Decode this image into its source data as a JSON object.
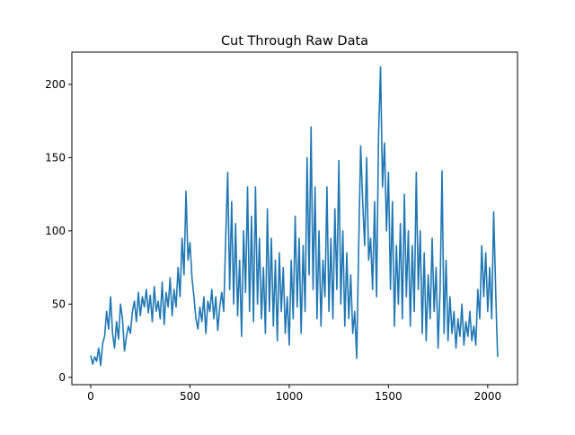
{
  "chart_data": {
    "type": "line",
    "title": "Cut Through Raw Data",
    "xlabel": "",
    "ylabel": "",
    "xlim": [
      -95,
      2150
    ],
    "ylim": [
      -5,
      222
    ],
    "xticks": [
      0,
      500,
      1000,
      1500,
      2000
    ],
    "yticks": [
      0,
      50,
      100,
      150,
      200
    ],
    "grid": false,
    "line_color": "#1f77b4",
    "series": [
      {
        "name": "",
        "points": [
          [
            0,
            15
          ],
          [
            10,
            9
          ],
          [
            20,
            14
          ],
          [
            30,
            11
          ],
          [
            40,
            20
          ],
          [
            50,
            8
          ],
          [
            60,
            23
          ],
          [
            70,
            28
          ],
          [
            80,
            45
          ],
          [
            90,
            33
          ],
          [
            100,
            55
          ],
          [
            110,
            30
          ],
          [
            120,
            20
          ],
          [
            130,
            38
          ],
          [
            140,
            26
          ],
          [
            150,
            50
          ],
          [
            160,
            40
          ],
          [
            170,
            18
          ],
          [
            180,
            28
          ],
          [
            190,
            35
          ],
          [
            200,
            30
          ],
          [
            210,
            45
          ],
          [
            220,
            52
          ],
          [
            230,
            38
          ],
          [
            240,
            58
          ],
          [
            250,
            42
          ],
          [
            260,
            55
          ],
          [
            270,
            48
          ],
          [
            280,
            60
          ],
          [
            290,
            44
          ],
          [
            300,
            56
          ],
          [
            310,
            38
          ],
          [
            320,
            62
          ],
          [
            330,
            45
          ],
          [
            340,
            52
          ],
          [
            350,
            40
          ],
          [
            360,
            65
          ],
          [
            370,
            36
          ],
          [
            380,
            58
          ],
          [
            390,
            48
          ],
          [
            400,
            68
          ],
          [
            410,
            42
          ],
          [
            420,
            60
          ],
          [
            430,
            48
          ],
          [
            440,
            75
          ],
          [
            450,
            55
          ],
          [
            460,
            95
          ],
          [
            470,
            70
          ],
          [
            480,
            127
          ],
          [
            490,
            80
          ],
          [
            500,
            92
          ],
          [
            510,
            68
          ],
          [
            520,
            55
          ],
          [
            530,
            40
          ],
          [
            540,
            33
          ],
          [
            550,
            48
          ],
          [
            560,
            38
          ],
          [
            570,
            55
          ],
          [
            580,
            30
          ],
          [
            590,
            52
          ],
          [
            600,
            45
          ],
          [
            610,
            60
          ],
          [
            620,
            40
          ],
          [
            630,
            55
          ],
          [
            640,
            32
          ],
          [
            650,
            48
          ],
          [
            660,
            58
          ],
          [
            670,
            45
          ],
          [
            680,
            95
          ],
          [
            690,
            140
          ],
          [
            700,
            60
          ],
          [
            710,
            120
          ],
          [
            720,
            50
          ],
          [
            730,
            105
          ],
          [
            740,
            42
          ],
          [
            750,
            80
          ],
          [
            760,
            28
          ],
          [
            770,
            100
          ],
          [
            780,
            58
          ],
          [
            790,
            130
          ],
          [
            800,
            45
          ],
          [
            810,
            110
          ],
          [
            820,
            38
          ],
          [
            830,
            130
          ],
          [
            840,
            50
          ],
          [
            850,
            95
          ],
          [
            860,
            40
          ],
          [
            870,
            75
          ],
          [
            880,
            30
          ],
          [
            890,
            115
          ],
          [
            900,
            45
          ],
          [
            910,
            95
          ],
          [
            920,
            35
          ],
          [
            930,
            80
          ],
          [
            940,
            25
          ],
          [
            950,
            85
          ],
          [
            960,
            45
          ],
          [
            970,
            75
          ],
          [
            980,
            30
          ],
          [
            990,
            55
          ],
          [
            1000,
            22
          ],
          [
            1010,
            80
          ],
          [
            1020,
            40
          ],
          [
            1030,
            110
          ],
          [
            1040,
            48
          ],
          [
            1050,
            95
          ],
          [
            1060,
            30
          ],
          [
            1070,
            90
          ],
          [
            1080,
            45
          ],
          [
            1090,
            150
          ],
          [
            1100,
            70
          ],
          [
            1110,
            171
          ],
          [
            1120,
            60
          ],
          [
            1130,
            130
          ],
          [
            1140,
            40
          ],
          [
            1150,
            100
          ],
          [
            1160,
            35
          ],
          [
            1170,
            80
          ],
          [
            1180,
            55
          ],
          [
            1190,
            130
          ],
          [
            1200,
            45
          ],
          [
            1210,
            95
          ],
          [
            1220,
            40
          ],
          [
            1230,
            115
          ],
          [
            1240,
            60
          ],
          [
            1250,
            148
          ],
          [
            1260,
            50
          ],
          [
            1270,
            100
          ],
          [
            1280,
            35
          ],
          [
            1290,
            85
          ],
          [
            1300,
            40
          ],
          [
            1310,
            70
          ],
          [
            1320,
            30
          ],
          [
            1330,
            45
          ],
          [
            1340,
            13
          ],
          [
            1350,
            90
          ],
          [
            1360,
            158
          ],
          [
            1370,
            120
          ],
          [
            1380,
            90
          ],
          [
            1390,
            150
          ],
          [
            1400,
            80
          ],
          [
            1410,
            95
          ],
          [
            1420,
            60
          ],
          [
            1430,
            120
          ],
          [
            1440,
            55
          ],
          [
            1450,
            165
          ],
          [
            1460,
            212
          ],
          [
            1470,
            130
          ],
          [
            1480,
            160
          ],
          [
            1490,
            100
          ],
          [
            1500,
            140
          ],
          [
            1510,
            60
          ],
          [
            1520,
            120
          ],
          [
            1530,
            35
          ],
          [
            1540,
            90
          ],
          [
            1550,
            50
          ],
          [
            1560,
            105
          ],
          [
            1570,
            40
          ],
          [
            1580,
            125
          ],
          [
            1590,
            55
          ],
          [
            1600,
            100
          ],
          [
            1610,
            35
          ],
          [
            1620,
            90
          ],
          [
            1630,
            45
          ],
          [
            1640,
            140
          ],
          [
            1650,
            60
          ],
          [
            1660,
            100
          ],
          [
            1670,
            30
          ],
          [
            1680,
            85
          ],
          [
            1690,
            25
          ],
          [
            1700,
            70
          ],
          [
            1710,
            40
          ],
          [
            1720,
            95
          ],
          [
            1730,
            45
          ],
          [
            1740,
            75
          ],
          [
            1750,
            20
          ],
          [
            1760,
            60
          ],
          [
            1770,
            141
          ],
          [
            1780,
            30
          ],
          [
            1790,
            80
          ],
          [
            1800,
            25
          ],
          [
            1810,
            55
          ],
          [
            1820,
            30
          ],
          [
            1830,
            45
          ],
          [
            1840,
            20
          ],
          [
            1850,
            40
          ],
          [
            1860,
            28
          ],
          [
            1870,
            50
          ],
          [
            1880,
            22
          ],
          [
            1890,
            38
          ],
          [
            1900,
            28
          ],
          [
            1910,
            45
          ],
          [
            1920,
            25
          ],
          [
            1930,
            35
          ],
          [
            1940,
            22
          ],
          [
            1950,
            60
          ],
          [
            1960,
            40
          ],
          [
            1970,
            90
          ],
          [
            1980,
            55
          ],
          [
            1990,
            85
          ],
          [
            2000,
            45
          ],
          [
            2010,
            75
          ],
          [
            2020,
            40
          ],
          [
            2030,
            113
          ],
          [
            2040,
            60
          ],
          [
            2045,
            35
          ],
          [
            2050,
            14
          ]
        ]
      }
    ]
  }
}
